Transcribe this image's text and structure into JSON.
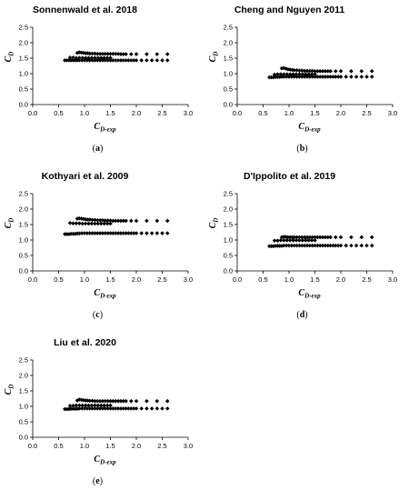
{
  "chart_data": [
    {
      "type": "scatter",
      "title": "Sonnenwald et al. 2018",
      "caption_letter": "a",
      "xlabel_main": "C",
      "xlabel_sub": "D-exp",
      "ylabel_main": "C",
      "ylabel_sub": "D",
      "xlim": [
        0,
        3
      ],
      "ylim": [
        0,
        2.5
      ],
      "xticks": [
        "0.0",
        "0.5",
        "1.0",
        "1.5",
        "2.0",
        "2.5",
        "3.0"
      ],
      "yticks": [
        "0.0",
        "0.5",
        "1.0",
        "1.5",
        "2.0",
        "2.5"
      ],
      "grid": false,
      "series": [
        {
          "x": [
            0.62,
            0.66,
            0.7,
            0.74,
            0.78,
            0.82,
            0.86,
            0.9,
            0.95,
            1.0,
            1.05,
            1.1,
            1.15,
            1.2,
            1.25,
            1.3,
            1.35,
            1.4,
            1.45,
            1.5,
            1.55,
            1.6,
            1.65,
            1.7,
            1.75,
            1.8,
            1.85,
            1.9,
            1.95,
            2.0,
            2.1,
            2.2,
            2.3,
            2.4,
            2.5,
            2.6
          ],
          "y": [
            1.43,
            1.43,
            1.43,
            1.43,
            1.43,
            1.43,
            1.43,
            1.43,
            1.43,
            1.43,
            1.43,
            1.43,
            1.43,
            1.43,
            1.43,
            1.43,
            1.43,
            1.43,
            1.43,
            1.43,
            1.43,
            1.43,
            1.43,
            1.43,
            1.43,
            1.43,
            1.43,
            1.43,
            1.43,
            1.43,
            1.43,
            1.43,
            1.43,
            1.43,
            1.43,
            1.43
          ]
        },
        {
          "x": [
            0.72,
            0.78,
            0.84,
            0.9,
            0.96,
            1.02,
            1.08,
            1.14,
            1.2,
            1.26,
            1.32,
            1.38,
            1.44,
            1.5
          ],
          "y": [
            1.52,
            1.52,
            1.51,
            1.51,
            1.51,
            1.51,
            1.51,
            1.51,
            1.51,
            1.51,
            1.51,
            1.51,
            1.51,
            1.51
          ]
        },
        {
          "x": [
            0.86,
            0.9,
            0.94,
            0.98,
            1.02,
            1.06,
            1.1,
            1.15,
            1.2,
            1.25,
            1.3,
            1.35,
            1.4,
            1.45,
            1.5,
            1.55,
            1.6,
            1.65,
            1.7,
            1.75,
            1.8,
            1.9,
            2.0,
            2.2,
            2.4,
            2.6
          ],
          "y": [
            1.67,
            1.69,
            1.68,
            1.67,
            1.66,
            1.66,
            1.65,
            1.65,
            1.65,
            1.64,
            1.64,
            1.64,
            1.64,
            1.64,
            1.64,
            1.64,
            1.64,
            1.64,
            1.63,
            1.63,
            1.63,
            1.63,
            1.63,
            1.63,
            1.63,
            1.63
          ]
        }
      ]
    },
    {
      "type": "scatter",
      "title": "Cheng and Nguyen 2011",
      "caption_letter": "b",
      "xlabel_main": "C",
      "xlabel_sub": "D-exp",
      "ylabel_main": "C",
      "ylabel_sub": "D",
      "xlim": [
        0,
        3
      ],
      "ylim": [
        0,
        2.5
      ],
      "xticks": [
        "0.0",
        "0.5",
        "1.0",
        "1.5",
        "2.0",
        "2.5",
        "3.0"
      ],
      "yticks": [
        "0.0",
        "0.5",
        "1.0",
        "1.5",
        "2.0",
        "2.5"
      ],
      "grid": false,
      "series": [
        {
          "x": [
            0.62,
            0.66,
            0.7,
            0.74,
            0.78,
            0.82,
            0.86,
            0.9,
            0.95,
            1.0,
            1.05,
            1.1,
            1.15,
            1.2,
            1.25,
            1.3,
            1.35,
            1.4,
            1.45,
            1.5,
            1.55,
            1.6,
            1.65,
            1.7,
            1.75,
            1.8,
            1.85,
            1.9,
            1.95,
            2.0,
            2.1,
            2.2,
            2.3,
            2.4,
            2.5,
            2.6
          ],
          "y": [
            0.88,
            0.88,
            0.88,
            0.89,
            0.89,
            0.89,
            0.9,
            0.9,
            0.9,
            0.9,
            0.9,
            0.9,
            0.9,
            0.9,
            0.9,
            0.9,
            0.9,
            0.9,
            0.9,
            0.9,
            0.9,
            0.9,
            0.9,
            0.9,
            0.9,
            0.9,
            0.9,
            0.9,
            0.9,
            0.9,
            0.9,
            0.9,
            0.9,
            0.9,
            0.9,
            0.9
          ]
        },
        {
          "x": [
            0.72,
            0.78,
            0.84,
            0.9,
            0.96,
            1.02,
            1.08,
            1.14,
            1.2,
            1.26,
            1.32,
            1.38,
            1.44,
            1.5
          ],
          "y": [
            0.97,
            0.98,
            0.98,
            0.98,
            0.98,
            0.98,
            0.98,
            0.98,
            0.98,
            0.98,
            0.98,
            0.98,
            0.98,
            0.98
          ]
        },
        {
          "x": [
            0.86,
            0.9,
            0.94,
            0.98,
            1.02,
            1.06,
            1.1,
            1.15,
            1.2,
            1.25,
            1.3,
            1.35,
            1.4,
            1.45,
            1.5,
            1.55,
            1.6,
            1.65,
            1.7,
            1.75,
            1.8,
            1.9,
            2.0,
            2.2,
            2.4,
            2.6
          ],
          "y": [
            1.17,
            1.18,
            1.16,
            1.14,
            1.13,
            1.12,
            1.11,
            1.11,
            1.1,
            1.1,
            1.09,
            1.09,
            1.09,
            1.09,
            1.08,
            1.08,
            1.08,
            1.08,
            1.08,
            1.08,
            1.08,
            1.08,
            1.08,
            1.08,
            1.08,
            1.08
          ]
        }
      ]
    },
    {
      "type": "scatter",
      "title": "Kothyari et al. 2009",
      "caption_letter": "c",
      "xlabel_main": "C",
      "xlabel_sub": "D-exp",
      "ylabel_main": "C",
      "ylabel_sub": "D",
      "xlim": [
        0,
        3
      ],
      "ylim": [
        0,
        2.5
      ],
      "xticks": [
        "0.0",
        "0.5",
        "1.0",
        "1.5",
        "2.0",
        "2.5",
        "3.0"
      ],
      "yticks": [
        "0.0",
        "0.5",
        "1.0",
        "1.5",
        "2.0",
        "2.5"
      ],
      "grid": false,
      "series": [
        {
          "x": [
            0.62,
            0.66,
            0.7,
            0.74,
            0.78,
            0.82,
            0.86,
            0.9,
            0.95,
            1.0,
            1.05,
            1.1,
            1.15,
            1.2,
            1.25,
            1.3,
            1.35,
            1.4,
            1.45,
            1.5,
            1.55,
            1.6,
            1.65,
            1.7,
            1.75,
            1.8,
            1.85,
            1.9,
            1.95,
            2.0,
            2.1,
            2.2,
            2.3,
            2.4,
            2.5,
            2.6
          ],
          "y": [
            1.19,
            1.19,
            1.19,
            1.2,
            1.2,
            1.2,
            1.21,
            1.21,
            1.22,
            1.22,
            1.22,
            1.22,
            1.22,
            1.22,
            1.22,
            1.22,
            1.22,
            1.22,
            1.22,
            1.22,
            1.22,
            1.22,
            1.22,
            1.22,
            1.22,
            1.22,
            1.22,
            1.22,
            1.22,
            1.22,
            1.22,
            1.22,
            1.22,
            1.22,
            1.22,
            1.22
          ]
        },
        {
          "x": [
            0.72,
            0.78,
            0.84,
            0.9,
            0.96,
            1.02,
            1.08,
            1.14,
            1.2,
            1.26,
            1.32,
            1.38,
            1.44,
            1.5
          ],
          "y": [
            1.55,
            1.54,
            1.54,
            1.54,
            1.53,
            1.53,
            1.53,
            1.53,
            1.53,
            1.53,
            1.53,
            1.53,
            1.53,
            1.53
          ]
        },
        {
          "x": [
            0.86,
            0.9,
            0.94,
            0.98,
            1.02,
            1.06,
            1.1,
            1.15,
            1.2,
            1.25,
            1.3,
            1.35,
            1.4,
            1.45,
            1.5,
            1.55,
            1.6,
            1.65,
            1.7,
            1.75,
            1.8,
            1.9,
            2.0,
            2.2,
            2.4,
            2.6
          ],
          "y": [
            1.69,
            1.7,
            1.69,
            1.68,
            1.67,
            1.66,
            1.66,
            1.65,
            1.65,
            1.64,
            1.64,
            1.64,
            1.63,
            1.63,
            1.63,
            1.62,
            1.62,
            1.62,
            1.62,
            1.62,
            1.62,
            1.62,
            1.62,
            1.62,
            1.62,
            1.62
          ]
        }
      ]
    },
    {
      "type": "scatter",
      "title": "D'Ippolito et al. 2019",
      "caption_letter": "d",
      "xlabel_main": "C",
      "xlabel_sub": "D-exp",
      "ylabel_main": "C",
      "ylabel_sub": "D",
      "xlim": [
        0,
        3
      ],
      "ylim": [
        0,
        2.5
      ],
      "xticks": [
        "0.0",
        "0.5",
        "1.0",
        "1.5",
        "2.0",
        "2.5",
        "3.0"
      ],
      "yticks": [
        "0.0",
        "0.5",
        "1.0",
        "1.5",
        "2.0",
        "2.5"
      ],
      "grid": false,
      "series": [
        {
          "x": [
            0.62,
            0.66,
            0.7,
            0.74,
            0.78,
            0.82,
            0.86,
            0.9,
            0.95,
            1.0,
            1.05,
            1.1,
            1.15,
            1.2,
            1.25,
            1.3,
            1.35,
            1.4,
            1.45,
            1.5,
            1.55,
            1.6,
            1.65,
            1.7,
            1.75,
            1.8,
            1.85,
            1.9,
            1.95,
            2.0,
            2.1,
            2.2,
            2.3,
            2.4,
            2.5,
            2.6
          ],
          "y": [
            0.8,
            0.8,
            0.8,
            0.81,
            0.81,
            0.81,
            0.81,
            0.82,
            0.82,
            0.82,
            0.82,
            0.82,
            0.82,
            0.82,
            0.82,
            0.82,
            0.82,
            0.82,
            0.82,
            0.82,
            0.82,
            0.82,
            0.82,
            0.82,
            0.82,
            0.82,
            0.82,
            0.82,
            0.82,
            0.82,
            0.82,
            0.82,
            0.82,
            0.82,
            0.82,
            0.82
          ]
        },
        {
          "x": [
            0.72,
            0.78,
            0.84,
            0.9,
            0.96,
            1.02,
            1.08,
            1.14,
            1.2,
            1.26,
            1.32,
            1.38,
            1.44,
            1.5
          ],
          "y": [
            0.98,
            0.98,
            0.99,
            0.99,
            0.99,
            0.99,
            0.99,
            0.99,
            0.99,
            0.99,
            0.99,
            0.99,
            0.99,
            0.99
          ]
        },
        {
          "x": [
            0.86,
            0.9,
            0.94,
            0.98,
            1.02,
            1.06,
            1.1,
            1.15,
            1.2,
            1.25,
            1.3,
            1.35,
            1.4,
            1.45,
            1.5,
            1.55,
            1.6,
            1.65,
            1.7,
            1.75,
            1.8,
            1.9,
            2.0,
            2.2,
            2.4,
            2.6
          ],
          "y": [
            1.09,
            1.1,
            1.1,
            1.09,
            1.09,
            1.09,
            1.09,
            1.09,
            1.09,
            1.09,
            1.09,
            1.09,
            1.09,
            1.09,
            1.09,
            1.09,
            1.09,
            1.09,
            1.09,
            1.09,
            1.09,
            1.09,
            1.09,
            1.09,
            1.09,
            1.09
          ]
        }
      ]
    },
    {
      "type": "scatter",
      "title": "Liu et al. 2020",
      "caption_letter": "e",
      "xlabel_main": "C",
      "xlabel_sub": "D-exp",
      "ylabel_main": "C",
      "ylabel_sub": "D",
      "xlim": [
        0,
        3
      ],
      "ylim": [
        0,
        2.5
      ],
      "xticks": [
        "0.0",
        "0.5",
        "1.0",
        "1.5",
        "2.0",
        "2.5",
        "3.0"
      ],
      "yticks": [
        "0.0",
        "0.5",
        "1.0",
        "1.5",
        "2.0",
        "2.5"
      ],
      "grid": false,
      "series": [
        {
          "x": [
            0.62,
            0.66,
            0.7,
            0.74,
            0.78,
            0.82,
            0.86,
            0.9,
            0.95,
            1.0,
            1.05,
            1.1,
            1.15,
            1.2,
            1.25,
            1.3,
            1.35,
            1.4,
            1.45,
            1.5,
            1.55,
            1.6,
            1.65,
            1.7,
            1.75,
            1.8,
            1.85,
            1.9,
            1.95,
            2.0,
            2.1,
            2.2,
            2.3,
            2.4,
            2.5,
            2.6
          ],
          "y": [
            0.91,
            0.91,
            0.91,
            0.92,
            0.92,
            0.92,
            0.92,
            0.93,
            0.93,
            0.93,
            0.93,
            0.93,
            0.93,
            0.93,
            0.93,
            0.93,
            0.93,
            0.93,
            0.93,
            0.93,
            0.93,
            0.93,
            0.93,
            0.93,
            0.93,
            0.93,
            0.93,
            0.93,
            0.93,
            0.93,
            0.93,
            0.93,
            0.93,
            0.93,
            0.93,
            0.93
          ]
        },
        {
          "x": [
            0.72,
            0.78,
            0.84,
            0.9,
            0.96,
            1.02,
            1.08,
            1.14,
            1.2,
            1.26,
            1.32,
            1.38,
            1.44,
            1.5
          ],
          "y": [
            1.02,
            1.02,
            1.03,
            1.03,
            1.03,
            1.03,
            1.03,
            1.03,
            1.03,
            1.03,
            1.03,
            1.03,
            1.03,
            1.03
          ]
        },
        {
          "x": [
            0.86,
            0.9,
            0.94,
            0.98,
            1.02,
            1.06,
            1.1,
            1.15,
            1.2,
            1.25,
            1.3,
            1.35,
            1.4,
            1.45,
            1.5,
            1.55,
            1.6,
            1.65,
            1.7,
            1.75,
            1.8,
            1.9,
            2.0,
            2.2,
            2.4,
            2.6
          ],
          "y": [
            1.19,
            1.22,
            1.21,
            1.2,
            1.19,
            1.19,
            1.18,
            1.18,
            1.17,
            1.17,
            1.17,
            1.17,
            1.17,
            1.17,
            1.17,
            1.17,
            1.17,
            1.17,
            1.17,
            1.17,
            1.17,
            1.17,
            1.17,
            1.17,
            1.17,
            1.17
          ]
        }
      ]
    }
  ],
  "marker_color": "#000000"
}
